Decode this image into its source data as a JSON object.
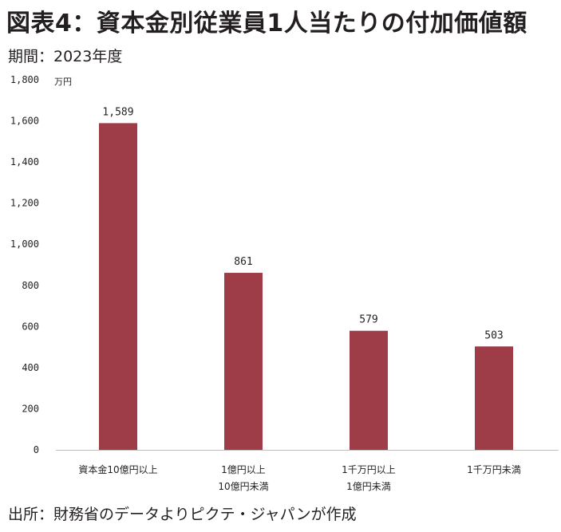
{
  "header": {
    "title": "図表4：資本金別従業員1人当たりの付加価値額",
    "period": "期間：2023年度"
  },
  "footer": {
    "source": "出所：財務省のデータよりピクテ・ジャパンが作成"
  },
  "colors": {
    "bar": "#9e3d47",
    "axis": "#bfbfbf"
  },
  "chart_data": {
    "type": "bar",
    "title": "図表4：資本金別従業員1人当たりの付加価値額",
    "subtitle": "期間：2023年度",
    "unit": "万円",
    "categories": [
      [
        "資本金10億円以上"
      ],
      [
        "1億円以上",
        "10億円未満"
      ],
      [
        "1千万円以上",
        "1億円未満"
      ],
      [
        "1千万円未満"
      ]
    ],
    "values": [
      1589,
      861,
      579,
      503
    ],
    "data_labels": [
      "1,589",
      "861",
      "579",
      "503"
    ],
    "ylim": [
      0,
      1800
    ],
    "yticks": [
      0,
      200,
      400,
      600,
      800,
      1000,
      1200,
      1400,
      1600,
      1800
    ],
    "ytick_labels": [
      "0",
      "200",
      "400",
      "600",
      "800",
      "1,000",
      "1,200",
      "1,400",
      "1,600",
      "1,800"
    ],
    "grid": false,
    "legend": "none"
  }
}
